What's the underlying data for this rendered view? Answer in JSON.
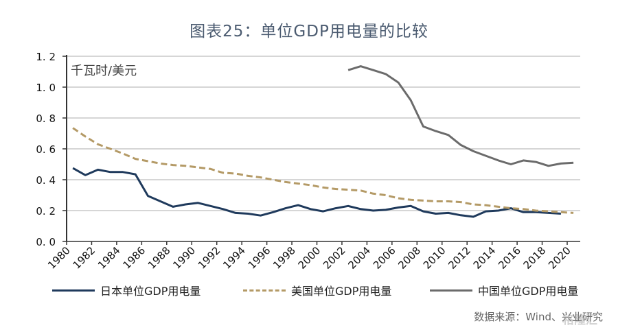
{
  "title": "图表25：单位GDP用电量的比较",
  "source": "数据来源：Wind、兴业研究",
  "watermark": "格隆汇",
  "colors": {
    "japan": "#1f3a5c",
    "us": "#b49a66",
    "china": "#6b6b6b",
    "grid": "#c8c8c8",
    "axis": "#333333"
  },
  "chart_data": {
    "type": "line",
    "title": "图表25：单位GDP用电量的比较",
    "unit_label": "千瓦时/美元",
    "xlabel": "",
    "ylabel": "千瓦时/美元",
    "ylim": [
      0,
      1.2
    ],
    "yticks": [
      "0.0",
      "0.2",
      "0.4",
      "0.6",
      "0.8",
      "1.0",
      "1.2"
    ],
    "xlim": [
      1980,
      2021
    ],
    "xticks": [
      "1980",
      "1982",
      "1984",
      "1986",
      "1988",
      "1990",
      "1992",
      "1994",
      "1996",
      "1998",
      "2000",
      "2002",
      "2004",
      "2006",
      "2008",
      "2010",
      "2012",
      "2014",
      "2016",
      "2018",
      "2020"
    ],
    "grid": true,
    "legend_position": "bottom",
    "series": [
      {
        "name": "日本单位GDP用电量",
        "style": "solid",
        "color_key": "japan",
        "start_year": 1980,
        "values": [
          0.475,
          0.43,
          0.465,
          0.45,
          0.45,
          0.435,
          0.295,
          0.26,
          0.225,
          0.24,
          0.25,
          0.23,
          0.21,
          0.185,
          0.18,
          0.168,
          0.19,
          0.215,
          0.235,
          0.21,
          0.195,
          0.215,
          0.23,
          0.21,
          0.2,
          0.205,
          0.22,
          0.23,
          0.195,
          0.18,
          0.185,
          0.17,
          0.16,
          0.195,
          0.2,
          0.215,
          0.19,
          0.19,
          0.185,
          0.18
        ]
      },
      {
        "name": "美国单位GDP用电量",
        "style": "dashed",
        "color_key": "us",
        "start_year": 1980,
        "values": [
          0.735,
          0.68,
          0.63,
          0.6,
          0.57,
          0.535,
          0.52,
          0.505,
          0.495,
          0.49,
          0.48,
          0.47,
          0.445,
          0.44,
          0.425,
          0.415,
          0.4,
          0.385,
          0.375,
          0.365,
          0.35,
          0.34,
          0.335,
          0.33,
          0.31,
          0.3,
          0.28,
          0.27,
          0.265,
          0.26,
          0.26,
          0.255,
          0.24,
          0.235,
          0.225,
          0.215,
          0.21,
          0.2,
          0.195,
          0.19,
          0.185
        ]
      },
      {
        "name": "中国单位GDP用电量",
        "style": "solid",
        "color_key": "china",
        "start_year": 2002,
        "values": [
          1.11,
          1.135,
          1.11,
          1.085,
          1.03,
          0.915,
          0.745,
          0.715,
          0.69,
          0.625,
          0.585,
          0.555,
          0.525,
          0.5,
          0.525,
          0.515,
          0.49,
          0.505,
          0.51
        ]
      }
    ]
  }
}
